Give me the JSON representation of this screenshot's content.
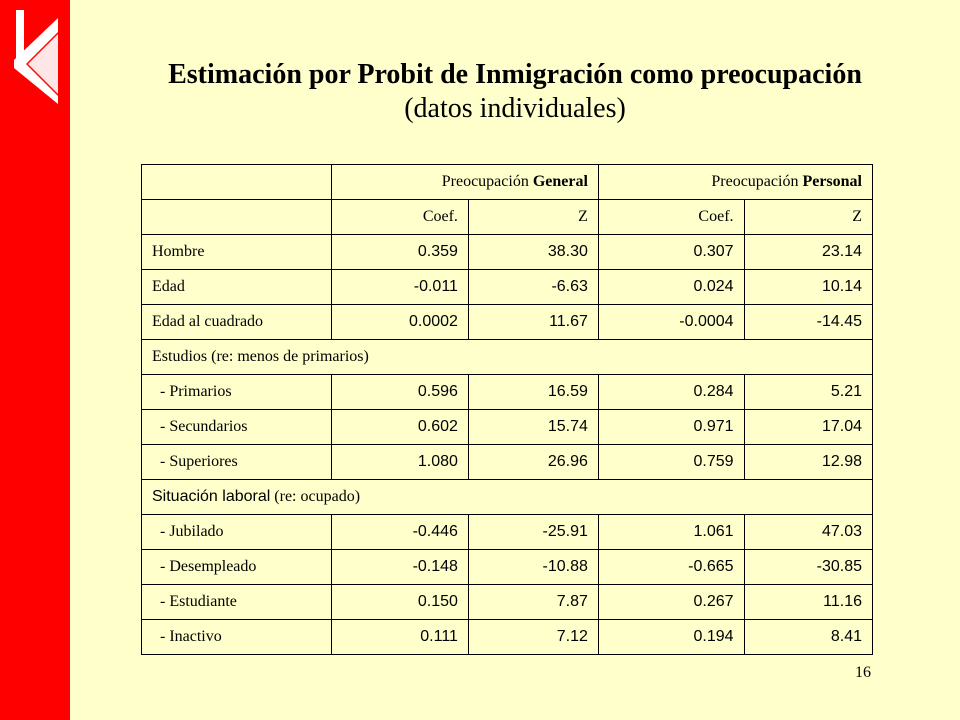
{
  "title": {
    "main": "Estimación por Probit de Inmigración como preocupación",
    "sub": "(datos individuales)"
  },
  "table": {
    "group_headers": [
      {
        "prefix": "Preocupación ",
        "bold": "General"
      },
      {
        "prefix": "Preocupación ",
        "bold": "Personal"
      }
    ],
    "sub_headers": [
      "Coef.",
      "Z",
      "Coef.",
      "Z"
    ],
    "rows_basic": [
      {
        "label": "Hombre",
        "values": [
          "0.359",
          "38.30",
          "0.307",
          "23.14"
        ]
      },
      {
        "label": "Edad",
        "values": [
          "-0.011",
          "-6.63",
          "0.024",
          "10.14"
        ]
      },
      {
        "label": "Edad al cuadrado",
        "values": [
          "0.0002",
          "11.67",
          "-0.0004",
          "-14.45"
        ]
      }
    ],
    "section_estudios": "Estudios (re: menos de primarios)",
    "rows_estudios": [
      {
        "label": "  - Primarios",
        "values": [
          "0.596",
          "16.59",
          "0.284",
          "5.21"
        ]
      },
      {
        "label": "  - Secundarios",
        "values": [
          "0.602",
          "15.74",
          "0.971",
          "17.04"
        ]
      },
      {
        "label": "  - Superiores",
        "values": [
          "1.080",
          "26.96",
          "0.759",
          "12.98"
        ]
      }
    ],
    "section_laboral": {
      "sans": "Situación laboral",
      "rest": " (re: ocupado)"
    },
    "rows_laboral": [
      {
        "label": "  - Jubilado",
        "values": [
          "-0.446",
          "-25.91",
          "1.061",
          "47.03"
        ]
      },
      {
        "label": "  - Desempleado",
        "values": [
          "-0.148",
          "-10.88",
          "-0.665",
          "-30.85"
        ]
      },
      {
        "label": "  - Estudiante",
        "values": [
          "0.150",
          "7.87",
          "0.267",
          "11.16"
        ]
      },
      {
        "label": "  - Inactivo",
        "values": [
          "0.111",
          "7.12",
          "0.194",
          "8.41"
        ]
      }
    ]
  },
  "page_number": "16"
}
